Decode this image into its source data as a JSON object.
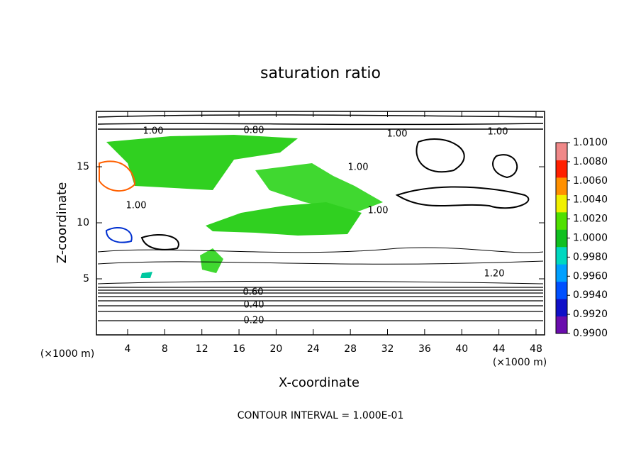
{
  "chart_data": {
    "type": "contour",
    "title": "saturation ratio",
    "x_label": "X-coordinate",
    "y_label": "Z-coordinate",
    "x_unit": "(×1000 m)",
    "footer": "CONTOUR INTERVAL = 1.000E-01",
    "xlim": [
      0.64,
      48.92
    ],
    "ylim": [
      0,
      19.94
    ],
    "xticks": [
      4,
      8,
      12,
      16,
      20,
      24,
      28,
      32,
      36,
      40,
      44,
      48
    ],
    "yticks": [
      5,
      10,
      15
    ],
    "colorbar": {
      "lim": [
        0.99,
        1.01
      ],
      "ticks": [
        {
          "value": 0.99,
          "label": "0.9900"
        },
        {
          "value": 0.992,
          "label": "0.9920"
        },
        {
          "value": 0.994,
          "label": "0.9940"
        },
        {
          "value": 0.996,
          "label": "0.9960"
        },
        {
          "value": 0.998,
          "label": "0.9980"
        },
        {
          "value": 1.0,
          "label": "1.0000"
        },
        {
          "value": 1.002,
          "label": "1.0020"
        },
        {
          "value": 1.004,
          "label": "1.0040"
        },
        {
          "value": 1.006,
          "label": "1.0060"
        },
        {
          "value": 1.008,
          "label": "1.0080"
        },
        {
          "value": 1.01,
          "label": "1.0100"
        }
      ],
      "colors": [
        "#6a0dad",
        "#1010c8",
        "#0050ff",
        "#00a0ff",
        "#00d8c0",
        "#10c020",
        "#50e000",
        "#f0f000",
        "#ff9000",
        "#ff2000",
        "#f08888"
      ]
    },
    "annotations": [
      "1.00",
      "0.80",
      "1.00",
      "1.00",
      "1.00",
      "1.00",
      "1.00",
      "1.20",
      "0.60",
      "0.40",
      "0.20"
    ]
  }
}
